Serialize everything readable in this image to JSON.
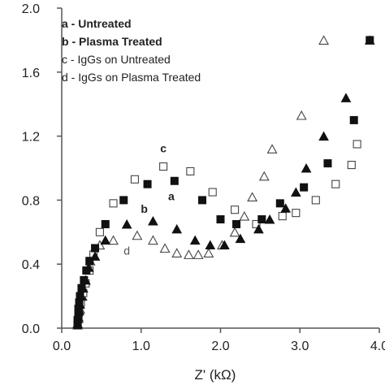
{
  "chart_data": {
    "type": "scatter",
    "xlabel": "Z' (kΩ)",
    "ylabel": "",
    "xlim": [
      0,
      4.0
    ],
    "ylim": [
      0,
      2.0
    ],
    "x_ticks": [
      "0.0",
      "1.0",
      "2.0",
      "3.0",
      "4.0"
    ],
    "y_ticks": [
      "0.0",
      "0.4",
      "0.8",
      "1.2",
      "1.6",
      "2.0"
    ],
    "grid": false,
    "legend_position": "top-left",
    "legend": [
      {
        "text": "a - Untreated",
        "bold": true
      },
      {
        "text": "b - Plasma Treated",
        "bold": true
      },
      {
        "text": "c - IgGs on Untreated",
        "bold": false
      },
      {
        "text": "d - IgGs on Plasma Treated",
        "bold": false
      }
    ],
    "annotations": [
      {
        "text": "c",
        "x": 1.28,
        "y": 1.1,
        "bold": true
      },
      {
        "text": "a",
        "x": 1.38,
        "y": 0.8,
        "bold": true
      },
      {
        "text": "b",
        "x": 1.04,
        "y": 0.72,
        "bold": true
      },
      {
        "text": "d",
        "x": 0.82,
        "y": 0.46,
        "bold": false
      }
    ],
    "series": [
      {
        "marker": "filled-square",
        "points": [
          [
            0.2,
            0.02
          ],
          [
            0.2,
            0.05
          ],
          [
            0.21,
            0.08
          ],
          [
            0.21,
            0.12
          ],
          [
            0.22,
            0.16
          ],
          [
            0.23,
            0.2
          ],
          [
            0.25,
            0.25
          ],
          [
            0.28,
            0.3
          ],
          [
            0.31,
            0.36
          ],
          [
            0.35,
            0.42
          ],
          [
            0.42,
            0.5
          ],
          [
            0.55,
            0.65
          ],
          [
            0.78,
            0.8
          ],
          [
            1.08,
            0.9
          ],
          [
            1.42,
            0.92
          ],
          [
            1.77,
            0.8
          ],
          [
            2.0,
            0.68
          ],
          [
            2.2,
            0.65
          ],
          [
            2.52,
            0.68
          ],
          [
            2.75,
            0.78
          ],
          [
            3.05,
            0.88
          ],
          [
            3.35,
            1.03
          ],
          [
            3.68,
            1.3
          ],
          [
            3.88,
            1.8
          ]
        ]
      },
      {
        "marker": "filled-triangle",
        "points": [
          [
            0.2,
            0.03
          ],
          [
            0.21,
            0.07
          ],
          [
            0.22,
            0.11
          ],
          [
            0.23,
            0.15
          ],
          [
            0.25,
            0.2
          ],
          [
            0.27,
            0.25
          ],
          [
            0.3,
            0.3
          ],
          [
            0.34,
            0.38
          ],
          [
            0.42,
            0.45
          ],
          [
            0.55,
            0.55
          ],
          [
            0.82,
            0.65
          ],
          [
            1.15,
            0.67
          ],
          [
            1.45,
            0.62
          ],
          [
            1.68,
            0.55
          ],
          [
            1.87,
            0.52
          ],
          [
            2.05,
            0.52
          ],
          [
            2.25,
            0.56
          ],
          [
            2.48,
            0.62
          ],
          [
            2.62,
            0.68
          ],
          [
            2.82,
            0.75
          ],
          [
            2.95,
            0.85
          ],
          [
            3.08,
            1.0
          ],
          [
            3.3,
            1.2
          ],
          [
            3.58,
            1.44
          ],
          [
            3.88,
            1.8
          ]
        ]
      },
      {
        "marker": "open-square",
        "points": [
          [
            0.2,
            0.02
          ],
          [
            0.21,
            0.06
          ],
          [
            0.22,
            0.1
          ],
          [
            0.24,
            0.16
          ],
          [
            0.27,
            0.22
          ],
          [
            0.3,
            0.28
          ],
          [
            0.35,
            0.36
          ],
          [
            0.4,
            0.46
          ],
          [
            0.48,
            0.6
          ],
          [
            0.65,
            0.78
          ],
          [
            0.92,
            0.93
          ],
          [
            1.28,
            1.01
          ],
          [
            1.62,
            0.98
          ],
          [
            1.9,
            0.85
          ],
          [
            2.18,
            0.74
          ],
          [
            2.45,
            0.65
          ],
          [
            2.78,
            0.7
          ],
          [
            2.95,
            0.72
          ],
          [
            3.2,
            0.8
          ],
          [
            3.45,
            0.9
          ],
          [
            3.65,
            1.02
          ],
          [
            3.72,
            1.15
          ]
        ]
      },
      {
        "marker": "open-triangle",
        "points": [
          [
            0.2,
            0.02
          ],
          [
            0.21,
            0.06
          ],
          [
            0.23,
            0.12
          ],
          [
            0.26,
            0.2
          ],
          [
            0.3,
            0.3
          ],
          [
            0.36,
            0.42
          ],
          [
            0.48,
            0.52
          ],
          [
            0.65,
            0.55
          ],
          [
            0.95,
            0.58
          ],
          [
            1.15,
            0.55
          ],
          [
            1.3,
            0.5
          ],
          [
            1.45,
            0.47
          ],
          [
            1.6,
            0.46
          ],
          [
            1.72,
            0.46
          ],
          [
            1.85,
            0.47
          ],
          [
            2.02,
            0.52
          ],
          [
            2.18,
            0.6
          ],
          [
            2.3,
            0.7
          ],
          [
            2.4,
            0.82
          ],
          [
            2.55,
            0.95
          ],
          [
            2.65,
            1.12
          ],
          [
            3.02,
            1.33
          ],
          [
            3.3,
            1.8
          ]
        ]
      }
    ]
  }
}
